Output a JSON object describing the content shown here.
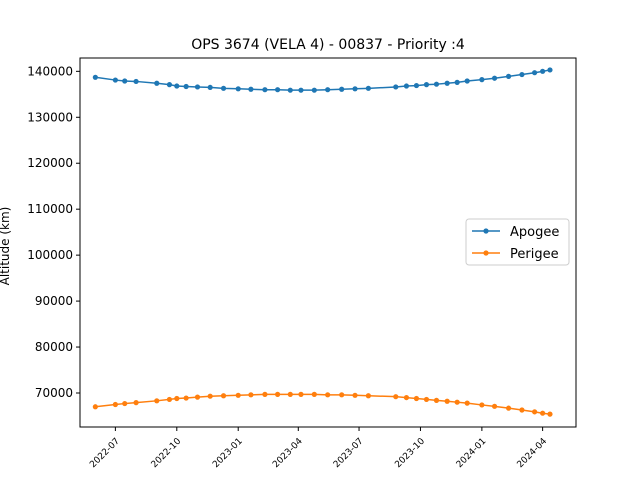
{
  "chart_data": {
    "type": "line",
    "title": "OPS 3674 (VELA 4) - 00837 - Priority :4",
    "xlabel": "",
    "ylabel": "Altitude (km)",
    "xlim": [
      "2022-05-09",
      "2024-05-21"
    ],
    "ylim": [
      62600,
      142900
    ],
    "x_ticks": [
      "2022-07-01",
      "2022-10-01",
      "2023-01-01",
      "2023-04-01",
      "2023-07-01",
      "2023-10-01",
      "2024-01-01",
      "2024-04-01"
    ],
    "x_tick_labels": [
      "2022-07",
      "2022-10",
      "2023-01",
      "2023-04",
      "2023-07",
      "2023-10",
      "2024-01",
      "2024-04"
    ],
    "y_ticks": [
      70000,
      80000,
      90000,
      100000,
      110000,
      120000,
      130000,
      140000
    ],
    "y_tick_labels": [
      "70000",
      "80000",
      "90000",
      "100000",
      "110000",
      "120000",
      "130000",
      "140000"
    ],
    "grid": false,
    "legend_position": "center-right",
    "x": [
      "2022-06-01",
      "2022-07-01",
      "2022-07-15",
      "2022-08-01",
      "2022-09-01",
      "2022-09-20",
      "2022-10-01",
      "2022-10-15",
      "2022-11-01",
      "2022-11-20",
      "2022-12-10",
      "2023-01-01",
      "2023-01-20",
      "2023-02-10",
      "2023-03-01",
      "2023-03-20",
      "2023-04-05",
      "2023-04-25",
      "2023-05-15",
      "2023-06-05",
      "2023-06-25",
      "2023-07-15",
      "2023-08-25",
      "2023-09-10",
      "2023-09-25",
      "2023-10-10",
      "2023-10-25",
      "2023-11-10",
      "2023-11-25",
      "2023-12-10",
      "2024-01-01",
      "2024-01-20",
      "2024-02-10",
      "2024-03-01",
      "2024-03-20",
      "2024-04-01",
      "2024-04-12"
    ],
    "series": [
      {
        "name": "Apogee",
        "color": "#1f77b4",
        "values": [
          138700,
          138100,
          137900,
          137800,
          137400,
          137100,
          136800,
          136700,
          136600,
          136500,
          136300,
          136200,
          136100,
          136000,
          136000,
          135900,
          135900,
          135900,
          136000,
          136100,
          136200,
          136300,
          136600,
          136800,
          136900,
          137100,
          137200,
          137400,
          137600,
          137900,
          138200,
          138500,
          138900,
          139300,
          139700,
          140000,
          140300
        ]
      },
      {
        "name": "Perigee",
        "color": "#ff7f0e",
        "values": [
          67000,
          67500,
          67700,
          67900,
          68300,
          68600,
          68800,
          68900,
          69100,
          69300,
          69400,
          69500,
          69600,
          69700,
          69700,
          69700,
          69700,
          69700,
          69600,
          69600,
          69500,
          69400,
          69200,
          69000,
          68800,
          68600,
          68400,
          68200,
          68000,
          67800,
          67400,
          67100,
          66700,
          66300,
          65900,
          65600,
          65400
        ]
      }
    ]
  }
}
